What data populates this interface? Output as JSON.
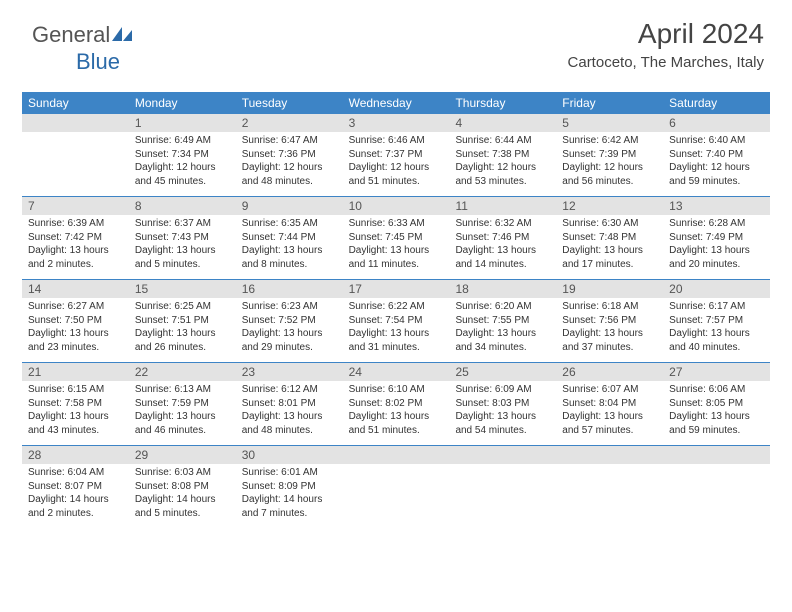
{
  "logo": {
    "part1": "General",
    "part2": "Blue"
  },
  "header": {
    "title": "April 2024",
    "location": "Cartoceto, The Marches, Italy"
  },
  "colors": {
    "header_bg": "#3d84c6",
    "header_text": "#ffffff",
    "daynum_bg": "#e3e3e3",
    "daynum_text": "#555555",
    "body_text": "#333333",
    "title_text": "#444444",
    "separator": "#3d84c6",
    "logo_blue": "#2b6aa8"
  },
  "day_headers": [
    "Sunday",
    "Monday",
    "Tuesday",
    "Wednesday",
    "Thursday",
    "Friday",
    "Saturday"
  ],
  "weeks": [
    {
      "nums": [
        "",
        "1",
        "2",
        "3",
        "4",
        "5",
        "6"
      ],
      "cells": [
        {
          "sunrise": "",
          "sunset": "",
          "daylight": ""
        },
        {
          "sunrise": "Sunrise: 6:49 AM",
          "sunset": "Sunset: 7:34 PM",
          "daylight": "Daylight: 12 hours and 45 minutes."
        },
        {
          "sunrise": "Sunrise: 6:47 AM",
          "sunset": "Sunset: 7:36 PM",
          "daylight": "Daylight: 12 hours and 48 minutes."
        },
        {
          "sunrise": "Sunrise: 6:46 AM",
          "sunset": "Sunset: 7:37 PM",
          "daylight": "Daylight: 12 hours and 51 minutes."
        },
        {
          "sunrise": "Sunrise: 6:44 AM",
          "sunset": "Sunset: 7:38 PM",
          "daylight": "Daylight: 12 hours and 53 minutes."
        },
        {
          "sunrise": "Sunrise: 6:42 AM",
          "sunset": "Sunset: 7:39 PM",
          "daylight": "Daylight: 12 hours and 56 minutes."
        },
        {
          "sunrise": "Sunrise: 6:40 AM",
          "sunset": "Sunset: 7:40 PM",
          "daylight": "Daylight: 12 hours and 59 minutes."
        }
      ]
    },
    {
      "nums": [
        "7",
        "8",
        "9",
        "10",
        "11",
        "12",
        "13"
      ],
      "cells": [
        {
          "sunrise": "Sunrise: 6:39 AM",
          "sunset": "Sunset: 7:42 PM",
          "daylight": "Daylight: 13 hours and 2 minutes."
        },
        {
          "sunrise": "Sunrise: 6:37 AM",
          "sunset": "Sunset: 7:43 PM",
          "daylight": "Daylight: 13 hours and 5 minutes."
        },
        {
          "sunrise": "Sunrise: 6:35 AM",
          "sunset": "Sunset: 7:44 PM",
          "daylight": "Daylight: 13 hours and 8 minutes."
        },
        {
          "sunrise": "Sunrise: 6:33 AM",
          "sunset": "Sunset: 7:45 PM",
          "daylight": "Daylight: 13 hours and 11 minutes."
        },
        {
          "sunrise": "Sunrise: 6:32 AM",
          "sunset": "Sunset: 7:46 PM",
          "daylight": "Daylight: 13 hours and 14 minutes."
        },
        {
          "sunrise": "Sunrise: 6:30 AM",
          "sunset": "Sunset: 7:48 PM",
          "daylight": "Daylight: 13 hours and 17 minutes."
        },
        {
          "sunrise": "Sunrise: 6:28 AM",
          "sunset": "Sunset: 7:49 PM",
          "daylight": "Daylight: 13 hours and 20 minutes."
        }
      ]
    },
    {
      "nums": [
        "14",
        "15",
        "16",
        "17",
        "18",
        "19",
        "20"
      ],
      "cells": [
        {
          "sunrise": "Sunrise: 6:27 AM",
          "sunset": "Sunset: 7:50 PM",
          "daylight": "Daylight: 13 hours and 23 minutes."
        },
        {
          "sunrise": "Sunrise: 6:25 AM",
          "sunset": "Sunset: 7:51 PM",
          "daylight": "Daylight: 13 hours and 26 minutes."
        },
        {
          "sunrise": "Sunrise: 6:23 AM",
          "sunset": "Sunset: 7:52 PM",
          "daylight": "Daylight: 13 hours and 29 minutes."
        },
        {
          "sunrise": "Sunrise: 6:22 AM",
          "sunset": "Sunset: 7:54 PM",
          "daylight": "Daylight: 13 hours and 31 minutes."
        },
        {
          "sunrise": "Sunrise: 6:20 AM",
          "sunset": "Sunset: 7:55 PM",
          "daylight": "Daylight: 13 hours and 34 minutes."
        },
        {
          "sunrise": "Sunrise: 6:18 AM",
          "sunset": "Sunset: 7:56 PM",
          "daylight": "Daylight: 13 hours and 37 minutes."
        },
        {
          "sunrise": "Sunrise: 6:17 AM",
          "sunset": "Sunset: 7:57 PM",
          "daylight": "Daylight: 13 hours and 40 minutes."
        }
      ]
    },
    {
      "nums": [
        "21",
        "22",
        "23",
        "24",
        "25",
        "26",
        "27"
      ],
      "cells": [
        {
          "sunrise": "Sunrise: 6:15 AM",
          "sunset": "Sunset: 7:58 PM",
          "daylight": "Daylight: 13 hours and 43 minutes."
        },
        {
          "sunrise": "Sunrise: 6:13 AM",
          "sunset": "Sunset: 7:59 PM",
          "daylight": "Daylight: 13 hours and 46 minutes."
        },
        {
          "sunrise": "Sunrise: 6:12 AM",
          "sunset": "Sunset: 8:01 PM",
          "daylight": "Daylight: 13 hours and 48 minutes."
        },
        {
          "sunrise": "Sunrise: 6:10 AM",
          "sunset": "Sunset: 8:02 PM",
          "daylight": "Daylight: 13 hours and 51 minutes."
        },
        {
          "sunrise": "Sunrise: 6:09 AM",
          "sunset": "Sunset: 8:03 PM",
          "daylight": "Daylight: 13 hours and 54 minutes."
        },
        {
          "sunrise": "Sunrise: 6:07 AM",
          "sunset": "Sunset: 8:04 PM",
          "daylight": "Daylight: 13 hours and 57 minutes."
        },
        {
          "sunrise": "Sunrise: 6:06 AM",
          "sunset": "Sunset: 8:05 PM",
          "daylight": "Daylight: 13 hours and 59 minutes."
        }
      ]
    },
    {
      "nums": [
        "28",
        "29",
        "30",
        "",
        "",
        "",
        ""
      ],
      "cells": [
        {
          "sunrise": "Sunrise: 6:04 AM",
          "sunset": "Sunset: 8:07 PM",
          "daylight": "Daylight: 14 hours and 2 minutes."
        },
        {
          "sunrise": "Sunrise: 6:03 AM",
          "sunset": "Sunset: 8:08 PM",
          "daylight": "Daylight: 14 hours and 5 minutes."
        },
        {
          "sunrise": "Sunrise: 6:01 AM",
          "sunset": "Sunset: 8:09 PM",
          "daylight": "Daylight: 14 hours and 7 minutes."
        },
        {
          "sunrise": "",
          "sunset": "",
          "daylight": ""
        },
        {
          "sunrise": "",
          "sunset": "",
          "daylight": ""
        },
        {
          "sunrise": "",
          "sunset": "",
          "daylight": ""
        },
        {
          "sunrise": "",
          "sunset": "",
          "daylight": ""
        }
      ]
    }
  ]
}
